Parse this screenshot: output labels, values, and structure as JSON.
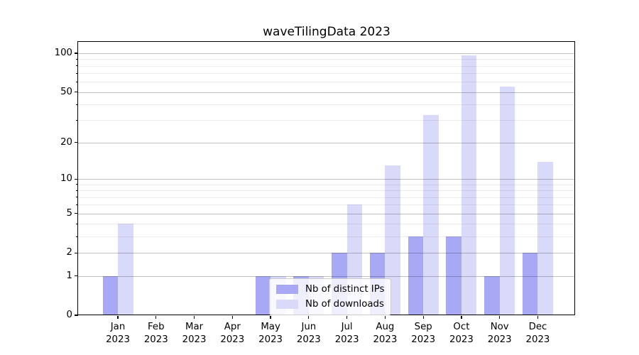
{
  "chart_data": {
    "type": "bar",
    "title": "waveTilingData 2023",
    "categories": [
      "Jan",
      "Feb",
      "Mar",
      "Apr",
      "May",
      "Jun",
      "Jul",
      "Aug",
      "Sep",
      "Oct",
      "Nov",
      "Dec"
    ],
    "category_year": "2023",
    "series": [
      {
        "name": "Nb of distinct IPs",
        "color": "#a8a8f4",
        "values": [
          1,
          0,
          0,
          0,
          1,
          1,
          2,
          2,
          3,
          3,
          1,
          2
        ]
      },
      {
        "name": "Nb of downloads",
        "color": "#d9d9f9",
        "values": [
          4,
          0,
          0,
          0,
          1,
          1,
          6,
          13,
          33,
          96,
          55,
          14
        ]
      }
    ],
    "y_axis": {
      "scale": "log10(1+x)",
      "major_ticks": [
        0,
        1,
        2,
        5,
        10,
        20,
        50,
        100
      ],
      "minor_ticks": [
        3,
        4,
        6,
        7,
        8,
        9,
        30,
        40,
        60,
        70,
        80,
        90
      ],
      "max_value_visible": 116
    },
    "grid": "both",
    "legend_position": "lower-center",
    "frame_color": "#000000",
    "major_grid_color": "rgba(0,0,0,0.24)",
    "minor_grid_color": "rgba(0,0,0,0.07)"
  }
}
